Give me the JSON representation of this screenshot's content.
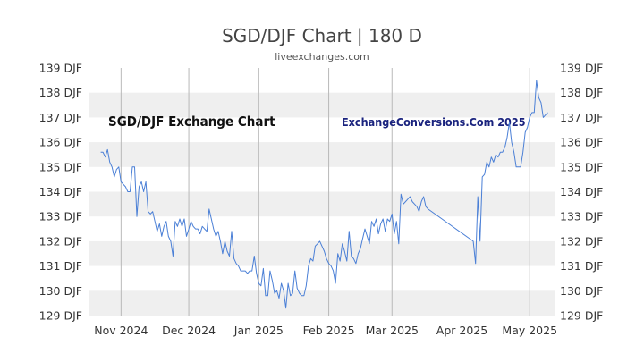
{
  "title": "SGD/DJF Chart | 180 D",
  "subtitle": "liveexchanges.com",
  "inner_title": "SGD/DJF Exchange Chart",
  "watermark": "ExchangeConversions.Com 2025",
  "colors": {
    "line": "#4a7fd6",
    "band": "#efefef",
    "grid": "#b8b8b8",
    "watermark": "#1a237e",
    "text": "#333333"
  },
  "chart_data": {
    "type": "line",
    "title": "SGD/DJF Chart | 180 D",
    "xlabel": "",
    "ylabel": "",
    "ylim": [
      129,
      139
    ],
    "y_ticks": [
      "129 DJF",
      "130 DJF",
      "131 DJF",
      "132 DJF",
      "133 DJF",
      "134 DJF",
      "135 DJF",
      "136 DJF",
      "137 DJF",
      "138 DJF",
      "139 DJF"
    ],
    "x_tick_labels": [
      "Nov 2024",
      "Dec 2024",
      "Jan 2025",
      "Feb 2025",
      "Mar 2025",
      "Apr 2025",
      "May 2025"
    ],
    "x_tick_dates": [
      "2024-11-01",
      "2024-12-01",
      "2025-01-01",
      "2025-02-01",
      "2025-03-01",
      "2025-04-01",
      "2025-05-01"
    ],
    "x_range": [
      "2024-10-18",
      "2025-05-12"
    ],
    "grid": true,
    "series": [
      {
        "values": [
          [
            "2024-10-23",
            135.6
          ],
          [
            "2024-10-24",
            135.6
          ],
          [
            "2024-10-25",
            135.4
          ],
          [
            "2024-10-26",
            135.7
          ],
          [
            "2024-10-27",
            135.2
          ],
          [
            "2024-10-28",
            135.0
          ],
          [
            "2024-10-29",
            134.6
          ],
          [
            "2024-10-30",
            134.9
          ],
          [
            "2024-10-31",
            135.0
          ],
          [
            "2024-11-01",
            134.4
          ],
          [
            "2024-11-02",
            134.3
          ],
          [
            "2024-11-03",
            134.2
          ],
          [
            "2024-11-04",
            134.0
          ],
          [
            "2024-11-05",
            134.0
          ],
          [
            "2024-11-06",
            135.0
          ],
          [
            "2024-11-07",
            135.0
          ],
          [
            "2024-11-08",
            133.0
          ],
          [
            "2024-11-09",
            134.2
          ],
          [
            "2024-11-10",
            134.4
          ],
          [
            "2024-11-11",
            134.0
          ],
          [
            "2024-11-12",
            134.4
          ],
          [
            "2024-11-13",
            133.2
          ],
          [
            "2024-11-14",
            133.1
          ],
          [
            "2024-11-15",
            133.2
          ],
          [
            "2024-11-16",
            132.8
          ],
          [
            "2024-11-17",
            132.4
          ],
          [
            "2024-11-18",
            132.7
          ],
          [
            "2024-11-19",
            132.2
          ],
          [
            "2024-11-20",
            132.6
          ],
          [
            "2024-11-21",
            132.8
          ],
          [
            "2024-11-22",
            132.2
          ],
          [
            "2024-11-23",
            132.0
          ],
          [
            "2024-11-24",
            131.4
          ],
          [
            "2024-11-25",
            132.8
          ],
          [
            "2024-11-26",
            132.6
          ],
          [
            "2024-11-27",
            132.9
          ],
          [
            "2024-11-28",
            132.6
          ],
          [
            "2024-11-29",
            132.9
          ],
          [
            "2024-11-30",
            132.2
          ],
          [
            "2024-12-01",
            132.5
          ],
          [
            "2024-12-02",
            132.8
          ],
          [
            "2024-12-03",
            132.6
          ],
          [
            "2024-12-04",
            132.5
          ],
          [
            "2024-12-05",
            132.5
          ],
          [
            "2024-12-06",
            132.3
          ],
          [
            "2024-12-07",
            132.6
          ],
          [
            "2024-12-08",
            132.5
          ],
          [
            "2024-12-09",
            132.4
          ],
          [
            "2024-12-10",
            133.3
          ],
          [
            "2024-12-11",
            132.9
          ],
          [
            "2024-12-12",
            132.5
          ],
          [
            "2024-12-13",
            132.2
          ],
          [
            "2024-12-14",
            132.4
          ],
          [
            "2024-12-15",
            132.0
          ],
          [
            "2024-12-16",
            131.5
          ],
          [
            "2024-12-17",
            132.0
          ],
          [
            "2024-12-18",
            131.6
          ],
          [
            "2024-12-19",
            131.4
          ],
          [
            "2024-12-20",
            132.4
          ],
          [
            "2024-12-21",
            131.3
          ],
          [
            "2024-12-22",
            131.1
          ],
          [
            "2024-12-23",
            131.0
          ],
          [
            "2024-12-24",
            130.8
          ],
          [
            "2024-12-25",
            130.8
          ],
          [
            "2024-12-26",
            130.8
          ],
          [
            "2024-12-27",
            130.7
          ],
          [
            "2024-12-28",
            130.8
          ],
          [
            "2024-12-29",
            130.8
          ],
          [
            "2024-12-30",
            131.4
          ],
          [
            "2024-12-31",
            130.7
          ],
          [
            "2025-01-01",
            130.3
          ],
          [
            "2025-01-02",
            130.2
          ],
          [
            "2025-01-03",
            130.9
          ],
          [
            "2025-01-04",
            129.8
          ],
          [
            "2025-01-05",
            129.8
          ],
          [
            "2025-01-06",
            130.8
          ],
          [
            "2025-01-07",
            130.4
          ],
          [
            "2025-01-08",
            129.9
          ],
          [
            "2025-01-09",
            130.0
          ],
          [
            "2025-01-10",
            129.7
          ],
          [
            "2025-01-11",
            130.3
          ],
          [
            "2025-01-12",
            130.0
          ],
          [
            "2025-01-13",
            129.3
          ],
          [
            "2025-01-14",
            130.3
          ],
          [
            "2025-01-15",
            129.8
          ],
          [
            "2025-01-16",
            129.9
          ],
          [
            "2025-01-17",
            130.8
          ],
          [
            "2025-01-18",
            130.1
          ],
          [
            "2025-01-19",
            129.9
          ],
          [
            "2025-01-20",
            129.8
          ],
          [
            "2025-01-21",
            129.8
          ],
          [
            "2025-01-22",
            130.2
          ],
          [
            "2025-01-23",
            131.0
          ],
          [
            "2025-01-24",
            131.3
          ],
          [
            "2025-01-25",
            131.2
          ],
          [
            "2025-01-26",
            131.8
          ],
          [
            "2025-01-27",
            131.9
          ],
          [
            "2025-01-28",
            132.0
          ],
          [
            "2025-01-29",
            131.8
          ],
          [
            "2025-01-30",
            131.6
          ],
          [
            "2025-01-31",
            131.3
          ],
          [
            "2025-02-01",
            131.1
          ],
          [
            "2025-02-02",
            131.0
          ],
          [
            "2025-02-03",
            130.8
          ],
          [
            "2025-02-04",
            130.3
          ],
          [
            "2025-02-05",
            131.5
          ],
          [
            "2025-02-06",
            131.2
          ],
          [
            "2025-02-07",
            131.9
          ],
          [
            "2025-02-08",
            131.6
          ],
          [
            "2025-02-09",
            131.2
          ],
          [
            "2025-02-10",
            132.4
          ],
          [
            "2025-02-11",
            131.4
          ],
          [
            "2025-02-12",
            131.3
          ],
          [
            "2025-02-13",
            131.1
          ],
          [
            "2025-02-14",
            131.5
          ],
          [
            "2025-02-15",
            131.7
          ],
          [
            "2025-02-16",
            132.1
          ],
          [
            "2025-02-17",
            132.5
          ],
          [
            "2025-02-18",
            132.2
          ],
          [
            "2025-02-19",
            131.9
          ],
          [
            "2025-02-20",
            132.8
          ],
          [
            "2025-02-21",
            132.6
          ],
          [
            "2025-02-22",
            132.9
          ],
          [
            "2025-02-23",
            132.3
          ],
          [
            "2025-02-24",
            132.7
          ],
          [
            "2025-02-25",
            132.9
          ],
          [
            "2025-02-26",
            132.4
          ],
          [
            "2025-02-27",
            132.9
          ],
          [
            "2025-02-28",
            132.8
          ],
          [
            "2025-03-01",
            133.1
          ],
          [
            "2025-03-02",
            132.3
          ],
          [
            "2025-03-03",
            132.8
          ],
          [
            "2025-03-04",
            131.9
          ],
          [
            "2025-03-05",
            133.9
          ],
          [
            "2025-03-06",
            133.5
          ],
          [
            "2025-03-07",
            133.6
          ],
          [
            "2025-03-08",
            133.7
          ],
          [
            "2025-03-09",
            133.8
          ],
          [
            "2025-03-10",
            133.6
          ],
          [
            "2025-03-11",
            133.5
          ],
          [
            "2025-03-12",
            133.4
          ],
          [
            "2025-03-13",
            133.2
          ],
          [
            "2025-03-14",
            133.6
          ],
          [
            "2025-03-15",
            133.8
          ],
          [
            "2025-03-16",
            133.4
          ],
          [
            "2025-03-17",
            133.3
          ],
          [
            "2025-04-06",
            132.0
          ],
          [
            "2025-04-07",
            131.1
          ],
          [
            "2025-04-08",
            133.8
          ],
          [
            "2025-04-09",
            132.0
          ],
          [
            "2025-04-10",
            134.6
          ],
          [
            "2025-04-11",
            134.7
          ],
          [
            "2025-04-12",
            135.2
          ],
          [
            "2025-04-13",
            135.0
          ],
          [
            "2025-04-14",
            135.4
          ],
          [
            "2025-04-15",
            135.2
          ],
          [
            "2025-04-16",
            135.5
          ],
          [
            "2025-04-17",
            135.4
          ],
          [
            "2025-04-18",
            135.6
          ],
          [
            "2025-04-19",
            135.6
          ],
          [
            "2025-04-20",
            135.8
          ],
          [
            "2025-04-21",
            136.2
          ],
          [
            "2025-04-22",
            136.8
          ],
          [
            "2025-04-23",
            136.0
          ],
          [
            "2025-04-24",
            135.6
          ],
          [
            "2025-04-25",
            135.0
          ],
          [
            "2025-04-26",
            135.0
          ],
          [
            "2025-04-27",
            135.0
          ],
          [
            "2025-04-28",
            135.6
          ],
          [
            "2025-04-29",
            136.4
          ],
          [
            "2025-04-30",
            136.6
          ],
          [
            "2025-05-01",
            137.0
          ],
          [
            "2025-05-02",
            137.2
          ],
          [
            "2025-05-03",
            137.2
          ],
          [
            "2025-05-04",
            138.5
          ],
          [
            "2025-05-05",
            137.8
          ],
          [
            "2025-05-06",
            137.6
          ],
          [
            "2025-05-07",
            137.0
          ],
          [
            "2025-05-08",
            137.1
          ],
          [
            "2025-05-09",
            137.2
          ]
        ]
      }
    ]
  }
}
